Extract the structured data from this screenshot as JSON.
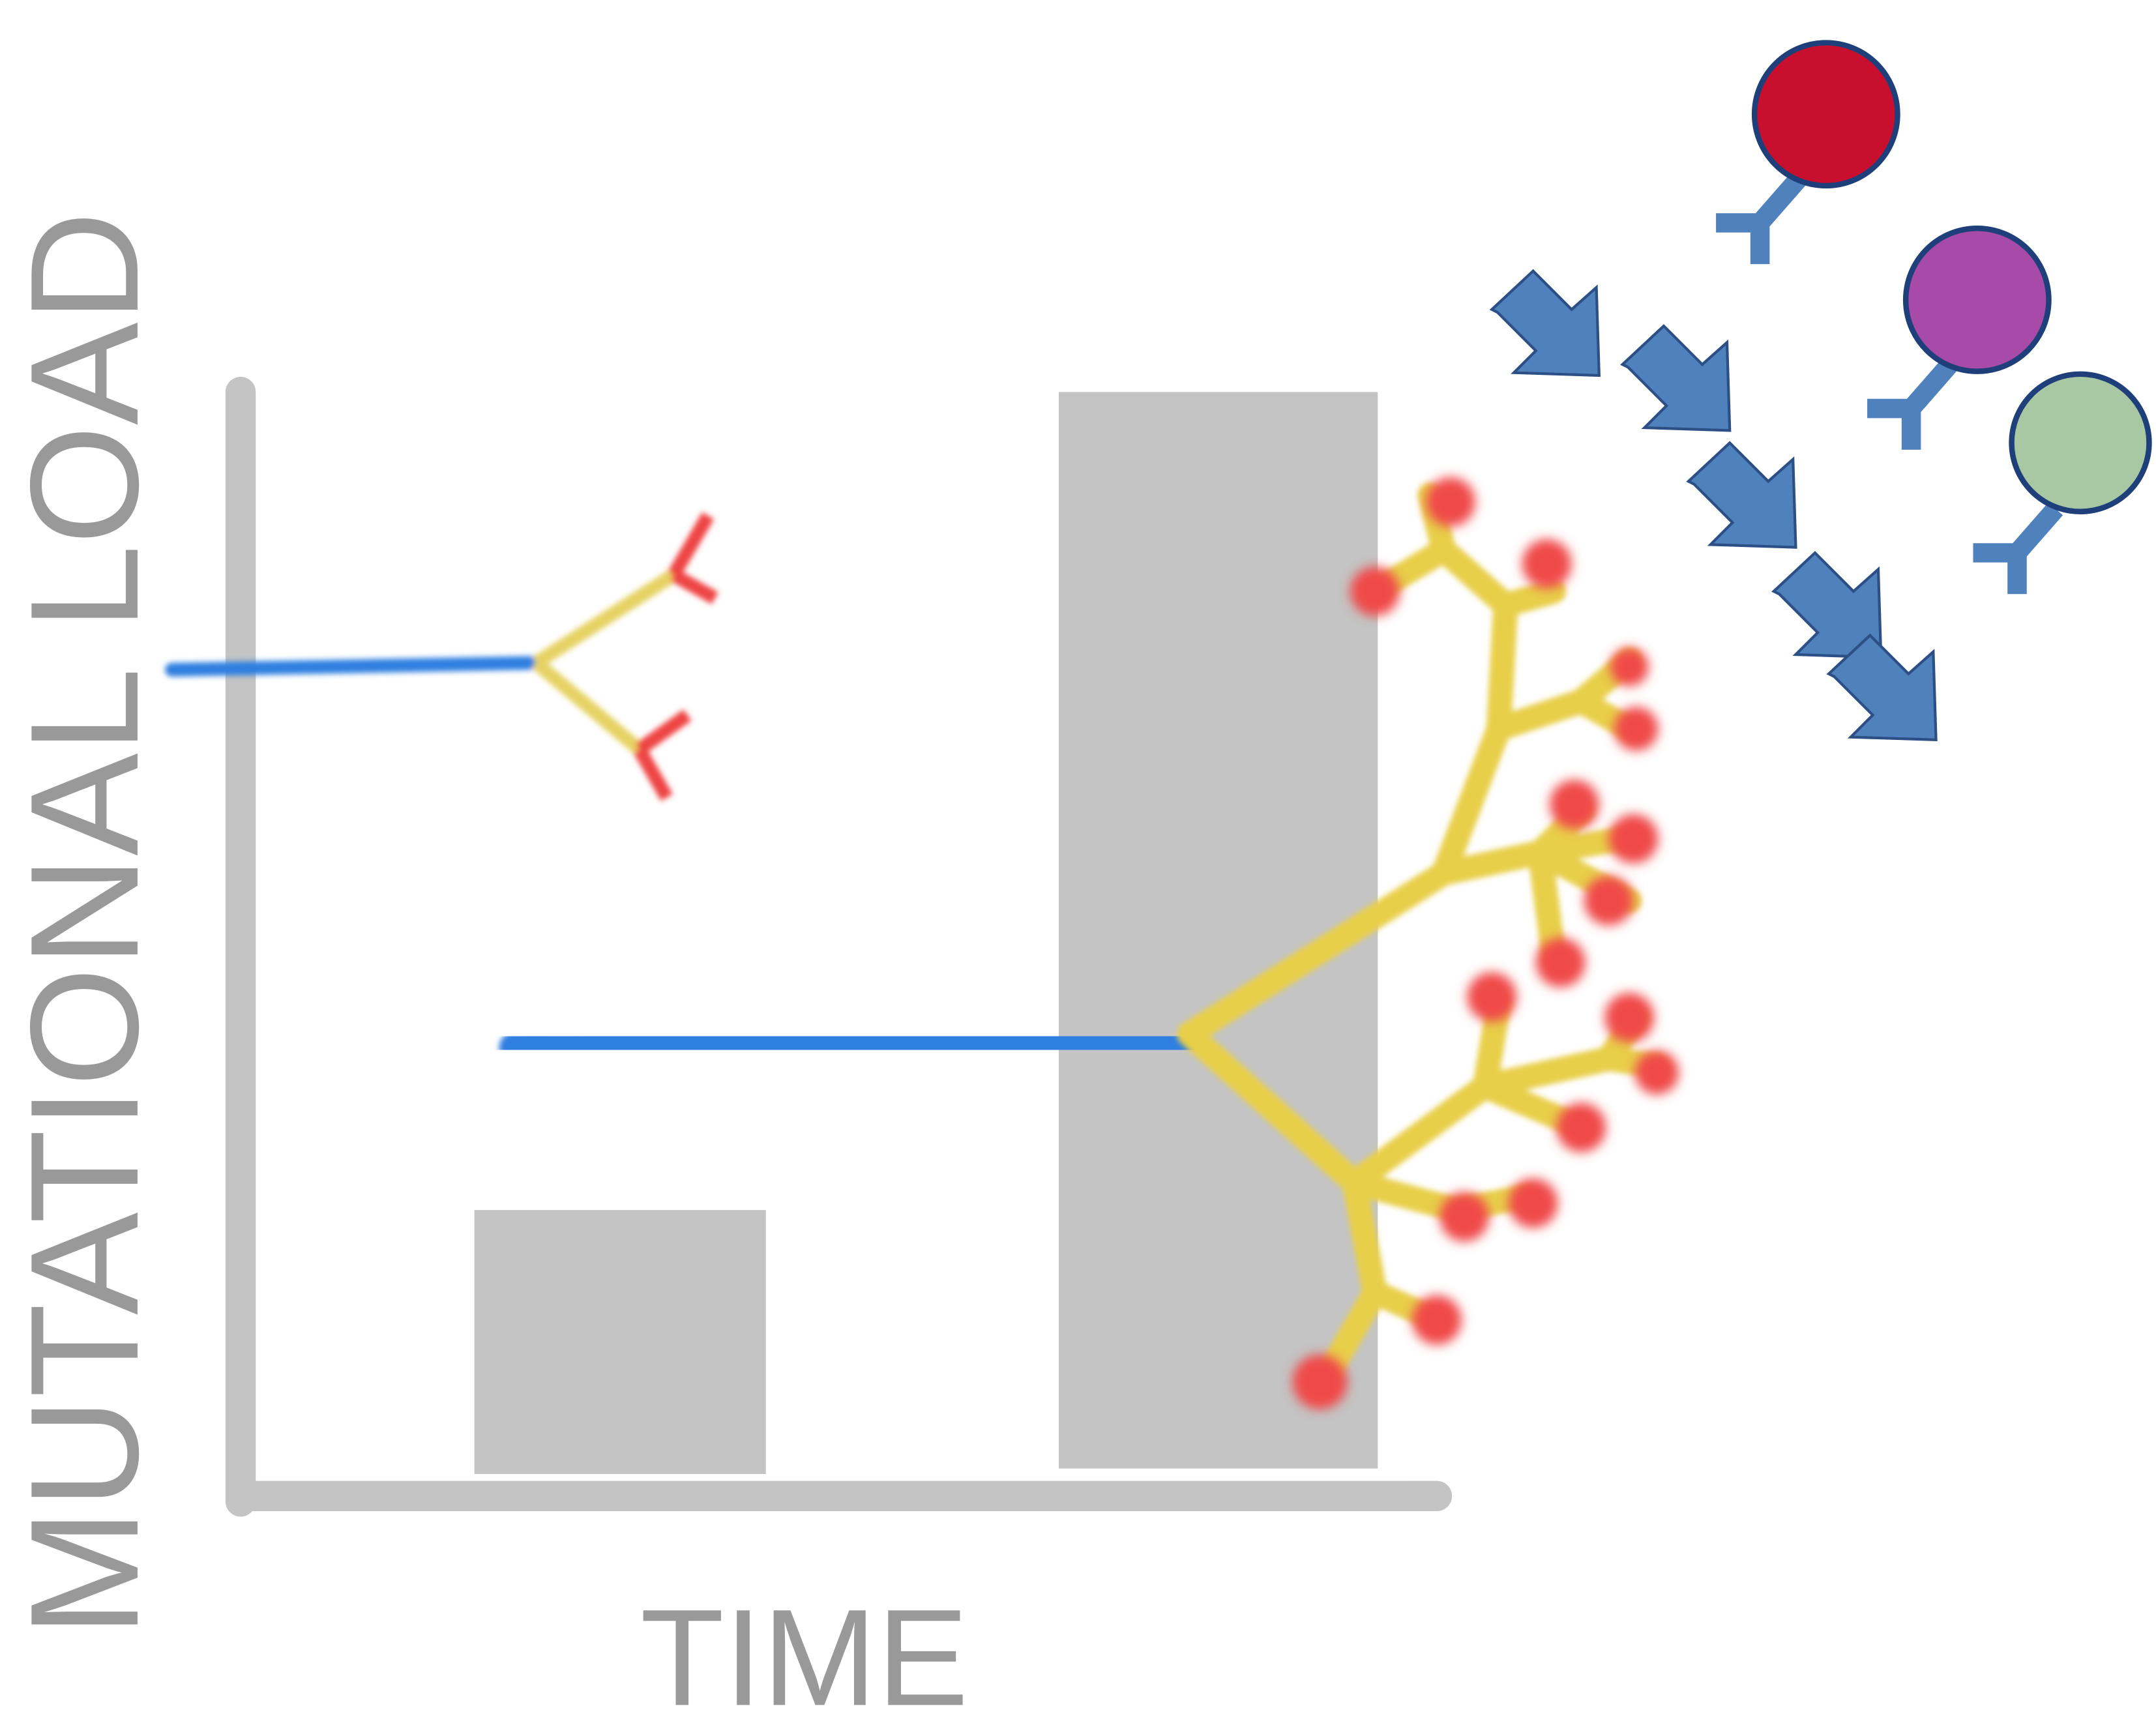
{
  "axes": {
    "y_label": "MUTATIONAL LOAD",
    "x_label": "TIME"
  }
}
